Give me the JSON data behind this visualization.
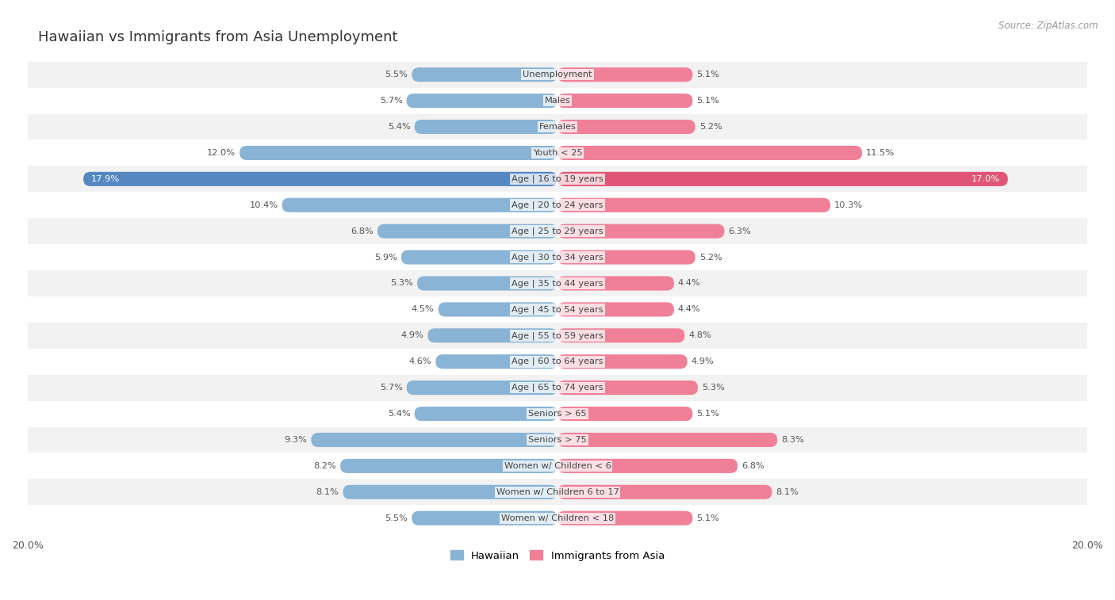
{
  "title": "Hawaiian vs Immigrants from Asia Unemployment",
  "source": "Source: ZipAtlas.com",
  "categories": [
    "Unemployment",
    "Males",
    "Females",
    "Youth < 25",
    "Age | 16 to 19 years",
    "Age | 20 to 24 years",
    "Age | 25 to 29 years",
    "Age | 30 to 34 years",
    "Age | 35 to 44 years",
    "Age | 45 to 54 years",
    "Age | 55 to 59 years",
    "Age | 60 to 64 years",
    "Age | 65 to 74 years",
    "Seniors > 65",
    "Seniors > 75",
    "Women w/ Children < 6",
    "Women w/ Children 6 to 17",
    "Women w/ Children < 18"
  ],
  "hawaiian": [
    5.5,
    5.7,
    5.4,
    12.0,
    17.9,
    10.4,
    6.8,
    5.9,
    5.3,
    4.5,
    4.9,
    4.6,
    5.7,
    5.4,
    9.3,
    8.2,
    8.1,
    5.5
  ],
  "asia": [
    5.1,
    5.1,
    5.2,
    11.5,
    17.0,
    10.3,
    6.3,
    5.2,
    4.4,
    4.4,
    4.8,
    4.9,
    5.3,
    5.1,
    8.3,
    6.8,
    8.1,
    5.1
  ],
  "hawaiian_color": "#8ab4d6",
  "asia_color": "#f08098",
  "hawaiian_highlight_color": "#5588c0",
  "asia_highlight_color": "#e05575",
  "row_bg_even": "#f2f2f2",
  "row_bg_odd": "#ffffff",
  "background_color": "#ffffff",
  "max_value": 20.0,
  "legend_hawaiian": "Hawaiian",
  "legend_asia": "Immigrants from Asia",
  "label_color": "#555555",
  "category_color": "#444444",
  "title_color": "#333333",
  "source_color": "#999999"
}
